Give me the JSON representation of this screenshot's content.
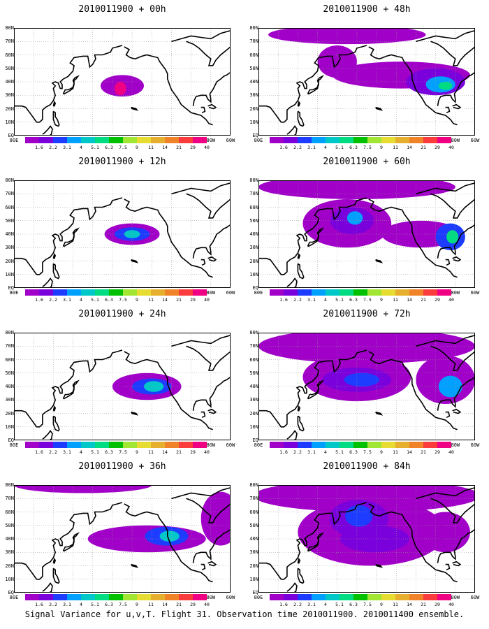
{
  "caption": "Signal Variance for u,v,T. Flight 31. Observation time 2010011900. 2010011400 ensemble.",
  "lat_labels": [
    "80N",
    "70N",
    "60N",
    "50N",
    "40N",
    "30N",
    "20N",
    "10N",
    "EQ"
  ],
  "lon_labels": [
    "80E",
    "100E",
    "120E",
    "140E",
    "160E",
    "180",
    "160W",
    "140W",
    "120W",
    "100W",
    "80W",
    "60W"
  ],
  "colorbar": {
    "labels": [
      "1.6",
      "2.2",
      "3.1",
      "4",
      "5.1",
      "6.3",
      "7.5",
      "9",
      "11",
      "14",
      "21",
      "29",
      "40"
    ],
    "colors": [
      "#a000c8",
      "#7a00dc",
      "#1e3cff",
      "#00a0ff",
      "#00c8c8",
      "#00dc82",
      "#00c000",
      "#a0e632",
      "#e6dc32",
      "#e6af2d",
      "#f08228",
      "#fa3c3c",
      "#f00082"
    ]
  },
  "panels": [
    {
      "title": "2010011900 + 00h",
      "blobs": [
        {
          "lon": 190,
          "lat": 37,
          "rlon": 22,
          "rlat": 8,
          "level": 0
        },
        {
          "lon": 188,
          "lat": 35,
          "rlon": 6,
          "rlat": 5,
          "level": 12
        }
      ]
    },
    {
      "title": "2010011900 + 12h",
      "blobs": [
        {
          "lon": 200,
          "lat": 40,
          "rlon": 28,
          "rlat": 8,
          "level": 0
        },
        {
          "lon": 200,
          "lat": 40,
          "rlon": 18,
          "rlat": 5,
          "level": 2
        },
        {
          "lon": 200,
          "lat": 40,
          "rlon": 8,
          "rlat": 3,
          "level": 4
        }
      ]
    },
    {
      "title": "2010011900 + 24h",
      "blobs": [
        {
          "lon": 215,
          "lat": 40,
          "rlon": 35,
          "rlat": 10,
          "level": 0
        },
        {
          "lon": 220,
          "lat": 40,
          "rlon": 20,
          "rlat": 6,
          "level": 2
        },
        {
          "lon": 222,
          "lat": 40,
          "rlon": 10,
          "rlat": 4,
          "level": 4
        }
      ]
    },
    {
      "title": "2010011900 + 36h",
      "blobs": [
        {
          "lon": 150,
          "lat": 80,
          "rlon": 70,
          "rlat": 6,
          "level": 0
        },
        {
          "lon": 215,
          "lat": 40,
          "rlon": 60,
          "rlat": 10,
          "level": 0
        },
        {
          "lon": 235,
          "lat": 42,
          "rlon": 22,
          "rlat": 7,
          "level": 2
        },
        {
          "lon": 238,
          "lat": 42,
          "rlon": 10,
          "rlat": 4,
          "level": 4
        },
        {
          "lon": 290,
          "lat": 55,
          "rlon": 20,
          "rlat": 20,
          "level": 0
        }
      ]
    },
    {
      "title": "2010011900 + 48h",
      "blobs": [
        {
          "lon": 170,
          "lat": 75,
          "rlon": 80,
          "rlat": 7,
          "level": 0
        },
        {
          "lon": 160,
          "lat": 55,
          "rlon": 20,
          "rlat": 12,
          "level": 0
        },
        {
          "lon": 225,
          "lat": 45,
          "rlon": 70,
          "rlat": 10,
          "level": 0
        },
        {
          "lon": 260,
          "lat": 40,
          "rlon": 30,
          "rlat": 10,
          "level": 1
        },
        {
          "lon": 265,
          "lat": 38,
          "rlon": 15,
          "rlat": 6,
          "level": 3
        },
        {
          "lon": 270,
          "lat": 37,
          "rlon": 7,
          "rlat": 3,
          "level": 5
        }
      ]
    },
    {
      "title": "2010011900 + 60h",
      "blobs": [
        {
          "lon": 180,
          "lat": 75,
          "rlon": 100,
          "rlat": 9,
          "level": 0
        },
        {
          "lon": 170,
          "lat": 48,
          "rlon": 45,
          "rlat": 18,
          "level": 0
        },
        {
          "lon": 175,
          "lat": 50,
          "rlon": 22,
          "rlat": 10,
          "level": 1
        },
        {
          "lon": 178,
          "lat": 52,
          "rlon": 8,
          "rlat": 5,
          "level": 3
        },
        {
          "lon": 245,
          "lat": 40,
          "rlon": 40,
          "rlat": 10,
          "level": 0
        },
        {
          "lon": 275,
          "lat": 38,
          "rlon": 15,
          "rlat": 10,
          "level": 2
        },
        {
          "lon": 277,
          "lat": 38,
          "rlon": 6,
          "rlat": 5,
          "level": 5
        }
      ]
    },
    {
      "title": "2010011900 + 72h",
      "blobs": [
        {
          "lon": 190,
          "lat": 70,
          "rlon": 110,
          "rlat": 13,
          "level": 0
        },
        {
          "lon": 180,
          "lat": 47,
          "rlon": 55,
          "rlat": 18,
          "level": 0
        },
        {
          "lon": 180,
          "lat": 45,
          "rlon": 35,
          "rlat": 9,
          "level": 1
        },
        {
          "lon": 185,
          "lat": 45,
          "rlon": 18,
          "rlat": 5,
          "level": 2
        },
        {
          "lon": 270,
          "lat": 45,
          "rlon": 30,
          "rlat": 18,
          "level": 0
        },
        {
          "lon": 275,
          "lat": 40,
          "rlon": 12,
          "rlat": 8,
          "level": 3
        }
      ]
    },
    {
      "title": "2010011900 + 84h",
      "blobs": [
        {
          "lon": 190,
          "lat": 72,
          "rlon": 115,
          "rlat": 12,
          "level": 0
        },
        {
          "lon": 195,
          "lat": 45,
          "rlon": 75,
          "rlat": 25,
          "level": 0
        },
        {
          "lon": 182,
          "lat": 55,
          "rlon": 30,
          "rlat": 14,
          "level": 1
        },
        {
          "lon": 182,
          "lat": 57,
          "rlon": 14,
          "rlat": 8,
          "level": 2
        },
        {
          "lon": 198,
          "lat": 40,
          "rlon": 35,
          "rlat": 10,
          "level": 1
        },
        {
          "lon": 270,
          "lat": 45,
          "rlon": 25,
          "rlat": 15,
          "level": 0
        }
      ]
    }
  ]
}
